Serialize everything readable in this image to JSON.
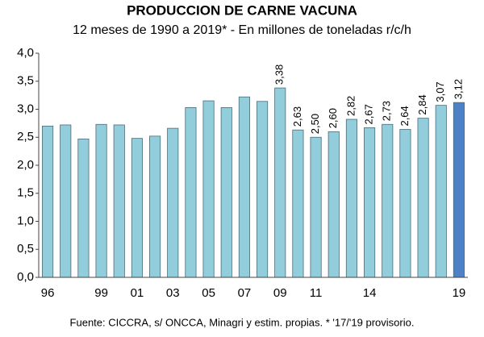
{
  "chart_data": {
    "type": "bar",
    "title": "PRODUCCION DE CARNE VACUNA",
    "subtitle": "12 meses de 1990 a 2019* - En millones de toneladas r/c/h",
    "source": "Fuente: CICCRA, s/ ONCCA, Minagri y estim. propias. * '17/'19 provisorio.",
    "categories": [
      "96",
      null,
      null,
      "99",
      null,
      "01",
      null,
      "03",
      null,
      "05",
      null,
      "07",
      null,
      "09",
      null,
      "11",
      null,
      null,
      "14",
      null,
      null,
      null,
      null,
      "19"
    ],
    "values": [
      2.7,
      2.72,
      2.47,
      2.73,
      2.72,
      2.48,
      2.52,
      2.66,
      3.03,
      3.15,
      3.03,
      3.22,
      3.14,
      3.38,
      2.63,
      2.5,
      2.6,
      2.82,
      2.67,
      2.73,
      2.64,
      2.84,
      3.07,
      3.12
    ],
    "value_labels": [
      null,
      null,
      null,
      null,
      null,
      null,
      null,
      null,
      null,
      null,
      null,
      null,
      null,
      "3,38",
      "2,63",
      "2,50",
      "2,60",
      "2,82",
      "2,67",
      "2,73",
      "2,64",
      "2,84",
      "3,07",
      "3,12"
    ],
    "colors": [
      "#92cddc",
      "#92cddc",
      "#92cddc",
      "#92cddc",
      "#92cddc",
      "#92cddc",
      "#92cddc",
      "#92cddc",
      "#92cddc",
      "#92cddc",
      "#92cddc",
      "#92cddc",
      "#92cddc",
      "#92cddc",
      "#92cddc",
      "#92cddc",
      "#92cddc",
      "#92cddc",
      "#92cddc",
      "#92cddc",
      "#92cddc",
      "#92cddc",
      "#92cddc",
      "#4f81c7"
    ],
    "ylim": [
      0,
      4
    ],
    "yticks": [
      {
        "value": 0,
        "label": "0,0"
      },
      {
        "value": 0.5,
        "label": "0,5"
      },
      {
        "value": 1,
        "label": "1,0"
      },
      {
        "value": 1.5,
        "label": "1,5"
      },
      {
        "value": 2,
        "label": "2,0"
      },
      {
        "value": 2.5,
        "label": "2,5"
      },
      {
        "value": 3,
        "label": "3,0"
      },
      {
        "value": 3.5,
        "label": "3,5"
      },
      {
        "value": 4,
        "label": "4,0"
      }
    ],
    "grid": false
  }
}
